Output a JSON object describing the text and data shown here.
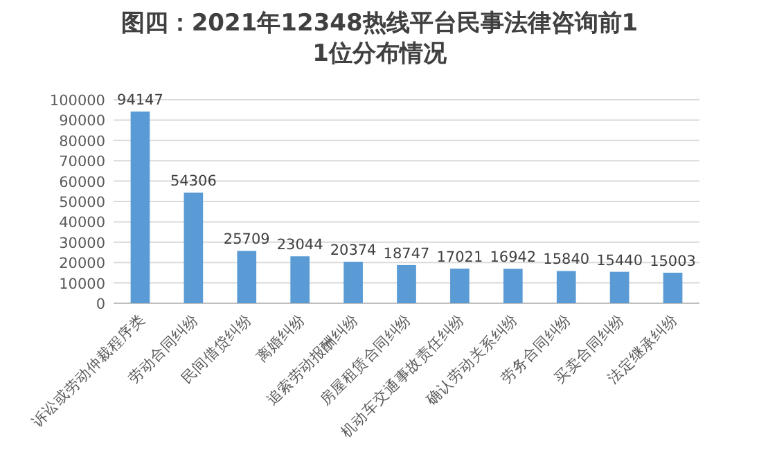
{
  "chart_data": {
    "type": "bar",
    "title": "图四：2021年12348热线平台民事法律咨询前11位分布情况",
    "categories": [
      "诉讼或劳动仲裁程序类",
      "劳动合同纠纷",
      "民间借贷纠纷",
      "离婚纠纷",
      "追索劳动报酬纠纷",
      "房屋租赁合同纠纷",
      "机动车交通事故责任纠纷",
      "确认劳动关系纠纷",
      "劳务合同纠纷",
      "买卖合同纠纷",
      "法定继承纠纷"
    ],
    "values": [
      94147,
      54306,
      25709,
      23044,
      20374,
      18747,
      17021,
      16942,
      15840,
      15440,
      15003
    ],
    "color": "#5b9bd5",
    "ylim": [
      0,
      100000
    ],
    "yticks": [
      0,
      10000,
      20000,
      30000,
      40000,
      50000,
      60000,
      70000,
      80000,
      90000,
      100000
    ],
    "grid": "y",
    "data_labels": true
  }
}
